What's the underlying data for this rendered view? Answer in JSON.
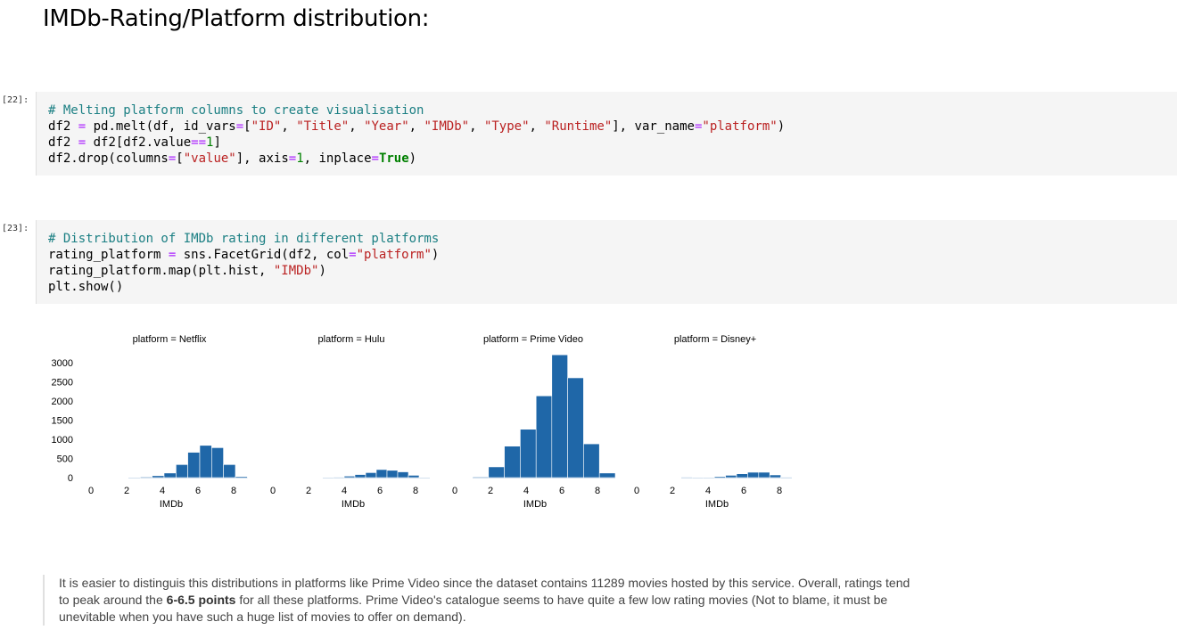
{
  "heading": "IMDb-Rating/Platform distribution:",
  "cells": [
    {
      "prompt": "[22]:",
      "lines": [
        [
          [
            "com",
            "# Melting platform columns to create visualisation"
          ]
        ],
        [
          [
            "t",
            "df2 "
          ],
          [
            "op",
            "="
          ],
          [
            "t",
            " pd.melt(df, id_vars"
          ],
          [
            "op",
            "="
          ],
          [
            "t",
            "["
          ],
          [
            "str",
            "\"ID\""
          ],
          [
            "t",
            ", "
          ],
          [
            "str",
            "\"Title\""
          ],
          [
            "t",
            ", "
          ],
          [
            "str",
            "\"Year\""
          ],
          [
            "t",
            ", "
          ],
          [
            "str",
            "\"IMDb\""
          ],
          [
            "t",
            ", "
          ],
          [
            "str",
            "\"Type\""
          ],
          [
            "t",
            ", "
          ],
          [
            "str",
            "\"Runtime\""
          ],
          [
            "t",
            "], var_name"
          ],
          [
            "op",
            "="
          ],
          [
            "str",
            "\"platform\""
          ],
          [
            "t",
            ")"
          ]
        ],
        [
          [
            "t",
            "df2 "
          ],
          [
            "op",
            "="
          ],
          [
            "t",
            " df2[df2.value"
          ],
          [
            "op",
            "=="
          ],
          [
            "num",
            "1"
          ],
          [
            "t",
            "]"
          ]
        ],
        [
          [
            "t",
            "df2.drop(columns"
          ],
          [
            "op",
            "="
          ],
          [
            "t",
            "["
          ],
          [
            "str",
            "\"value\""
          ],
          [
            "t",
            "], axis"
          ],
          [
            "op",
            "="
          ],
          [
            "num",
            "1"
          ],
          [
            "t",
            ", inplace"
          ],
          [
            "op",
            "="
          ],
          [
            "kw",
            "True"
          ],
          [
            "t",
            ")"
          ]
        ]
      ]
    },
    {
      "prompt": "[23]:",
      "lines": [
        [
          [
            "com",
            "# Distribution of IMDb rating in different platforms"
          ]
        ],
        [
          [
            "t",
            "rating_platform "
          ],
          [
            "op",
            "="
          ],
          [
            "t",
            " sns.FacetGrid(df2, col"
          ],
          [
            "op",
            "="
          ],
          [
            "str",
            "\"platform\""
          ],
          [
            "t",
            ")"
          ]
        ],
        [
          [
            "t",
            "rating_platform.map(plt.hist, "
          ],
          [
            "str",
            "\"IMDb\""
          ],
          [
            "t",
            ")"
          ]
        ],
        [
          [
            "t",
            "plt.show()"
          ]
        ]
      ]
    }
  ],
  "chart_data": {
    "type": "bar",
    "xlabel": "IMDb",
    "xlim": [
      0,
      8.6
    ],
    "ylim": [
      0,
      3250
    ],
    "yticks": [
      0,
      500,
      1000,
      1500,
      2000,
      2500,
      3000
    ],
    "xticks": [
      0,
      2,
      4,
      6,
      8
    ],
    "bin_edges": [
      2.1,
      2.95,
      3.8,
      4.65,
      5.5,
      6.35,
      7.2,
      8.05,
      8.9
    ],
    "panels": [
      {
        "title": "platform = Netflix",
        "edges": [
          2.1,
          2.77,
          3.43,
          4.1,
          4.77,
          5.43,
          6.1,
          6.77,
          7.43,
          8.1,
          8.77
        ],
        "values": [
          10,
          20,
          50,
          120,
          340,
          660,
          840,
          780,
          340,
          30
        ]
      },
      {
        "title": "platform = Hulu",
        "edges": [
          2.8,
          3.4,
          4.0,
          4.6,
          5.2,
          5.8,
          6.4,
          7.0,
          7.6,
          8.2,
          8.8
        ],
        "values": [
          5,
          15,
          40,
          80,
          130,
          210,
          190,
          150,
          60,
          10
        ]
      },
      {
        "title": "platform = Prime Video",
        "edges": [
          1.0,
          1.89,
          2.78,
          3.67,
          4.56,
          5.44,
          6.33,
          7.22,
          8.11,
          9.0
        ],
        "values": [
          20,
          280,
          820,
          1260,
          2130,
          3200,
          2600,
          880,
          120
        ]
      },
      {
        "title": "platform = Disney+",
        "edges": [
          2.5,
          3.12,
          3.74,
          4.36,
          4.98,
          5.6,
          6.22,
          6.84,
          7.46,
          8.08,
          8.7
        ],
        "values": [
          3,
          5,
          10,
          30,
          60,
          100,
          140,
          140,
          70,
          15
        ]
      }
    ],
    "bar_color": "#1f67a8"
  },
  "markdown": {
    "before": "It is easier to distinguis this distributions in platforms like Prime Video since the dataset contains 11289 movies hosted by this service. Overall, ratings tend to peak around the ",
    "bold": "6-6.5 points",
    "after": " for all these platforms. Prime Video's catalogue seems to have quite a few low rating movies (Not to blame, it must be unevitable when you have such a huge list of movies to offer on demand)."
  }
}
